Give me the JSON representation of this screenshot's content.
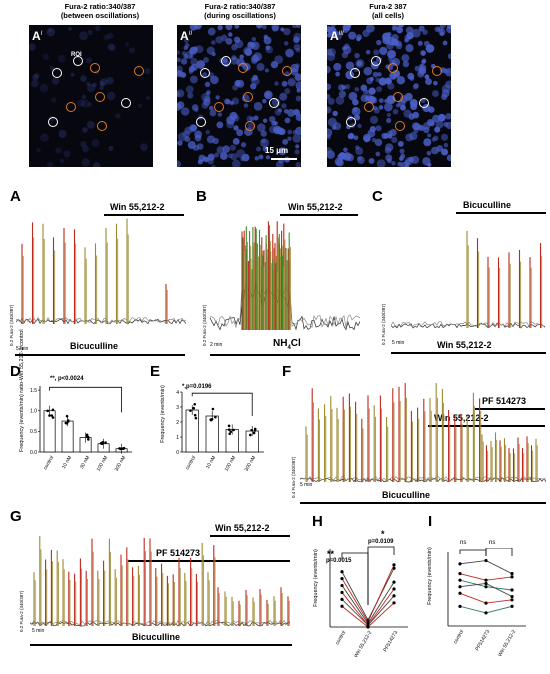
{
  "top_panels": [
    {
      "label": "A",
      "sup": "I",
      "title1": "Fura-2 ratio:340/387",
      "title2": "(between oscillations)",
      "roi": "ROI"
    },
    {
      "label": "A",
      "sup": "II",
      "title1": "Fura-2 ratio:340/387",
      "title2": "(during oscillations)",
      "scale": "15 μm"
    },
    {
      "label": "A",
      "sup": "III",
      "title1": "Fura-2 387",
      "title2": "(all cells)"
    }
  ],
  "panel_A": {
    "letter": "A",
    "drug_top": "Win 55,212-2",
    "drug_bottom": "Bicuculline",
    "time_scale": "5 min",
    "amp_scale": "0.2 Fura-2 (340/387)"
  },
  "panel_B": {
    "letter": "B",
    "drug_top": "Win 55,212-2",
    "drug_bottom": "NH",
    "drug_bottom_sub": "4",
    "drug_bottom_tail": "Cl",
    "time_scale": "2 min",
    "amp_scale": "0.2 Fura-2 (340/387)"
  },
  "panel_C": {
    "letter": "C",
    "drug_top": "Bicuculline",
    "drug_bottom": "Win 55,212-2",
    "time_scale": "5 min",
    "amp_scale": "0.2 Fura-2 (340/387)"
  },
  "panel_D": {
    "letter": "D",
    "ylabel": "Frequency (events/min) ratio-Win 55,212-2/control",
    "stat": "**, p<0.0024",
    "categories": [
      "control",
      "10 nM",
      "30 nM",
      "100 nM",
      "300 nM"
    ],
    "ticks": [
      "0.0",
      "0.5",
      "1.0",
      "1.5"
    ]
  },
  "panel_E": {
    "letter": "E",
    "ylabel": "Frequency (events/min)",
    "stat": "*,p=0.0196",
    "categories": [
      "control",
      "10 nM",
      "100 nM",
      "300 nM"
    ],
    "ticks": [
      "0",
      "1",
      "2",
      "3",
      "4"
    ]
  },
  "panel_F": {
    "letter": "F",
    "drug1": "PF 514273",
    "drug2": "Win 55,212-2",
    "drug3": "Bicuculline",
    "time_scale": "5 min",
    "amp_scale": "0.4 Fura-2 (340/387)"
  },
  "panel_G": {
    "letter": "G",
    "drug1": "Win 55,212-2",
    "drug2": "PF 514273",
    "drug3": "Bicuculline",
    "time_scale": "5 min",
    "amp_scale": "0.2 Fura-2 (340/387)"
  },
  "panel_H": {
    "letter": "H",
    "ylabel": "Frequency (events/min)",
    "stat1": "**",
    "stat1b": "p=0.0015",
    "stat2": "*",
    "stat2b": "p=0.0109",
    "categories": [
      "control",
      "Win 55,212-2",
      "PF514273"
    ]
  },
  "panel_I": {
    "letter": "I",
    "ylabel": "Frequency (events/min)",
    "ns1": "ns",
    "ns2": "ns",
    "categories": [
      "control",
      "PF514273",
      "Win 55,212-2"
    ]
  },
  "colors": {
    "trace_red": "#c0281c",
    "trace_olive": "#9a8a2e",
    "trace_green": "#3c8a2a",
    "trace_gray": "#8a8a8a",
    "cell_blue": "#4a5fc8",
    "roi": "#ffffff",
    "roi_orange": "#e07a2a"
  },
  "chart_data": [
    {
      "type": "bar",
      "panel": "D",
      "categories": [
        "control",
        "10 nM",
        "30 nM",
        "100 nM",
        "300 nM"
      ],
      "values": [
        1.0,
        0.75,
        0.35,
        0.2,
        0.08
      ],
      "ylim": [
        0,
        1.6
      ]
    },
    {
      "type": "bar",
      "panel": "E",
      "categories": [
        "control",
        "10 nM",
        "100 nM",
        "300 nM"
      ],
      "values": [
        2.8,
        2.4,
        1.5,
        1.4
      ],
      "ylim": [
        0,
        4
      ]
    },
    {
      "type": "line",
      "panel": "H",
      "categories": [
        "control",
        "Win 55,212-2",
        "PF514273"
      ],
      "series": [
        {
          "values": [
            1.6,
            0.2,
            1.7
          ]
        },
        {
          "values": [
            1.4,
            0.15,
            1.8
          ]
        },
        {
          "values": [
            1.2,
            0.1,
            1.3
          ]
        },
        {
          "values": [
            1.0,
            0.05,
            1.1
          ]
        },
        {
          "values": [
            0.8,
            0.05,
            0.9
          ]
        },
        {
          "values": [
            0.6,
            0.0,
            0.7
          ]
        }
      ]
    },
    {
      "type": "line",
      "panel": "I",
      "categories": [
        "control",
        "PF514273",
        "Win 55,212-2"
      ],
      "series": [
        {
          "values": [
            1.9,
            2.0,
            1.6
          ]
        },
        {
          "values": [
            1.6,
            1.4,
            1.5
          ]
        },
        {
          "values": [
            1.4,
            1.2,
            1.1
          ]
        },
        {
          "values": [
            1.2,
            1.3,
            0.9
          ]
        },
        {
          "values": [
            1.0,
            0.7,
            0.8
          ]
        },
        {
          "values": [
            0.6,
            0.4,
            0.6
          ]
        }
      ]
    }
  ]
}
